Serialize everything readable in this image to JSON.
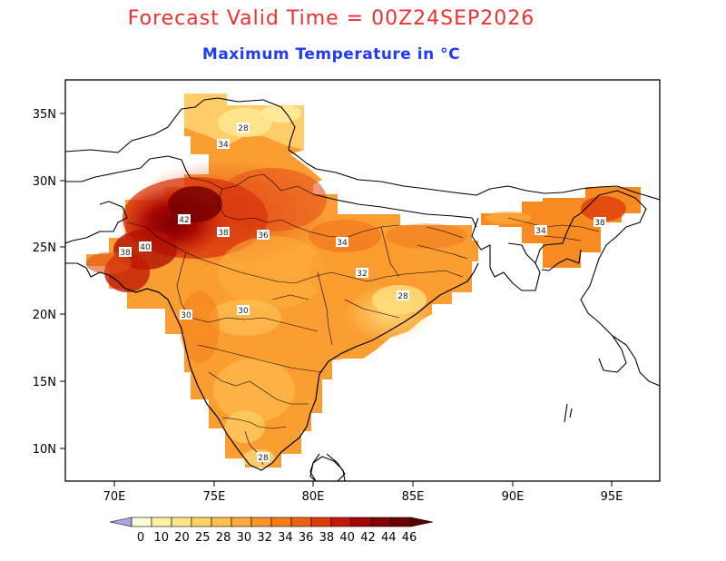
{
  "title": "Forecast Valid Time = 00Z24SEP2026",
  "subtitle": "Maximum Temperature in °C",
  "colors": {
    "title": "#ee3030",
    "subtitle": "#1e3cff"
  },
  "axes": {
    "lon_ticks": [
      "70E",
      "75E",
      "80E",
      "85E",
      "90E",
      "95E"
    ],
    "lat_ticks": [
      "35N",
      "30N",
      "25N",
      "20N",
      "15N",
      "10N"
    ]
  },
  "contour_labels": [
    "28",
    "34",
    "42",
    "38",
    "36",
    "34",
    "38",
    "40",
    "32",
    "28",
    "30",
    "28",
    "34",
    "38",
    "30"
  ],
  "colorbar": {
    "labels": [
      "0",
      "10",
      "20",
      "25",
      "28",
      "30",
      "32",
      "34",
      "36",
      "38",
      "40",
      "42",
      "44",
      "46"
    ],
    "colors": [
      "#fffbd6",
      "#fff1a8",
      "#ffe488",
      "#ffd466",
      "#ffc04e",
      "#fdab3c",
      "#fa9428",
      "#f47d18",
      "#ec6212",
      "#dc3c0a",
      "#c01806",
      "#a20404",
      "#840000",
      "#6a0000"
    ],
    "low_color": "#a8a8e8",
    "high_color": "#5a0000"
  }
}
